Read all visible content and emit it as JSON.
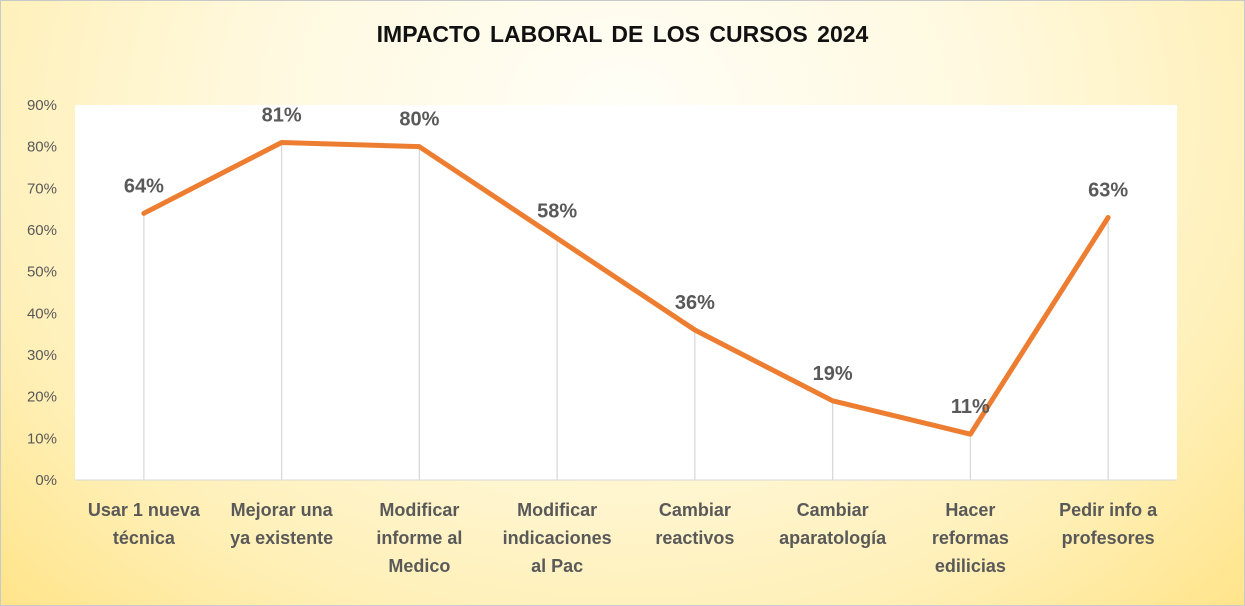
{
  "chart_data": {
    "type": "line",
    "title": "IMPACTO LABORAL DE LOS CURSOS 2024",
    "categories": [
      "Usar 1 nueva técnica",
      "Mejorar una ya existente",
      "Modificar informe al Medico",
      "Modificar indicaciones al Pac",
      "Cambiar reactivos",
      "Cambiar aparatología",
      "Hacer reformas edilicias",
      "Pedir info a profesores"
    ],
    "category_lines": [
      [
        "Usar 1 nueva",
        "técnica"
      ],
      [
        "Mejorar una",
        "ya existente"
      ],
      [
        "Modificar",
        "informe al",
        "Medico"
      ],
      [
        "Modificar",
        "indicaciones",
        "al Pac"
      ],
      [
        "Cambiar",
        "reactivos"
      ],
      [
        "Cambiar",
        "aparatología"
      ],
      [
        "Hacer",
        "reformas",
        "edilicias"
      ],
      [
        "Pedir info a",
        "profesores"
      ]
    ],
    "values": [
      64,
      81,
      80,
      58,
      36,
      19,
      11,
      63
    ],
    "data_labels": [
      "64%",
      "81%",
      "80%",
      "58%",
      "36%",
      "19%",
      "11%",
      "63%"
    ],
    "ylim": [
      0,
      90
    ],
    "yticks": [
      0,
      10,
      20,
      30,
      40,
      50,
      60,
      70,
      80,
      90
    ],
    "ytick_labels": [
      "0%",
      "10%",
      "20%",
      "30%",
      "40%",
      "50%",
      "60%",
      "70%",
      "80%",
      "90%"
    ],
    "xlabel": "",
    "ylabel": "",
    "grid": "vertical drop lines",
    "line_color": "#ED7D31",
    "dropline_color": "#d9d9d9"
  }
}
